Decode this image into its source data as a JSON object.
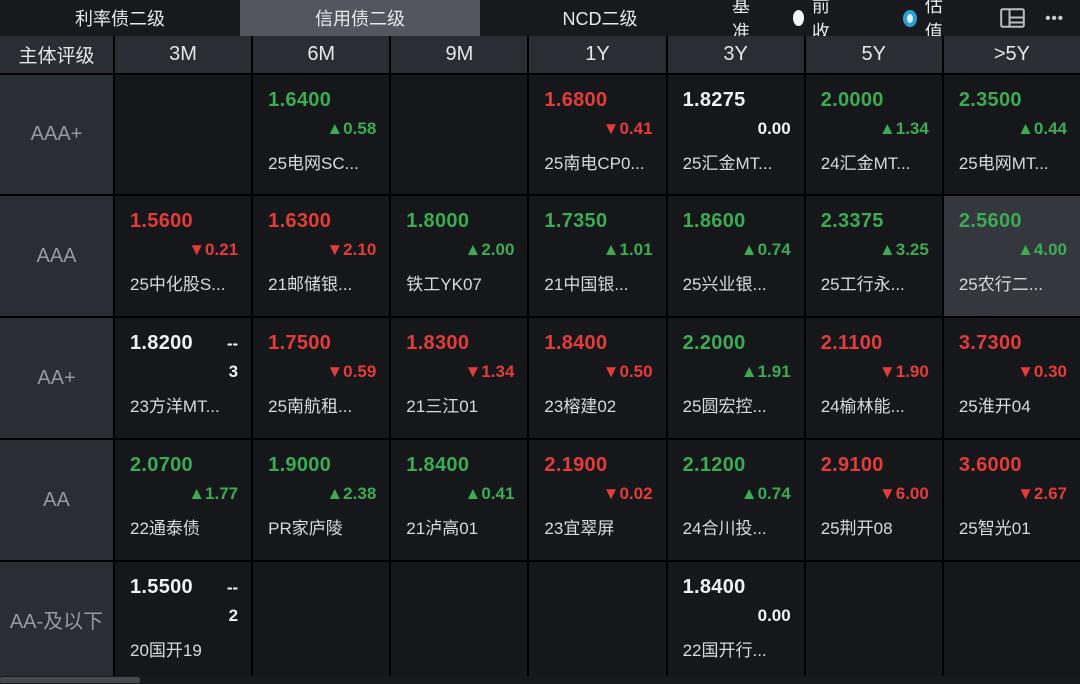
{
  "colors": {
    "green": "#3cab52",
    "red": "#e43c38",
    "accent_blue": "#2b9fd6",
    "panel": "#2a2d33",
    "cell_bg": "#15171b",
    "highlight_bg": "#34373e"
  },
  "glyphs": {
    "up": "▲",
    "down": "▼",
    "dash": "--",
    "more": "•••"
  },
  "tabs": [
    {
      "label": "利率债二级",
      "active": false
    },
    {
      "label": "信用债二级",
      "active": true
    },
    {
      "label": "NCD二级",
      "active": false
    }
  ],
  "toolbar": {
    "benchmark_label": "基准",
    "radios": [
      {
        "label": "前收",
        "selected": false
      },
      {
        "label": "估值",
        "selected": true
      }
    ]
  },
  "table": {
    "corner_header": "主体评级",
    "columns": [
      "3M",
      "6M",
      "9M",
      "1Y",
      "3Y",
      "5Y",
      ">5Y"
    ],
    "rows": [
      {
        "rating": "AAA+",
        "cells": [
          null,
          {
            "value": "1.6400",
            "value_color": "green",
            "direction": "up",
            "change": "0.58",
            "name": "25电网SC..."
          },
          null,
          {
            "value": "1.6800",
            "value_color": "red",
            "direction": "down",
            "change": "0.41",
            "name": "25南电CP0..."
          },
          {
            "value": "1.8275",
            "value_color": "white",
            "direction": "flat",
            "change": "0.00",
            "name": "25汇金MT..."
          },
          {
            "value": "2.0000",
            "value_color": "green",
            "direction": "up",
            "change": "1.34",
            "name": "24汇金MT..."
          },
          {
            "value": "2.3500",
            "value_color": "green",
            "direction": "up",
            "change": "0.44",
            "name": "25电网MT..."
          }
        ]
      },
      {
        "rating": "AAA",
        "cells": [
          {
            "value": "1.5600",
            "value_color": "red",
            "direction": "down",
            "change": "0.21",
            "name": "25中化股S..."
          },
          {
            "value": "1.6300",
            "value_color": "red",
            "direction": "down",
            "change": "2.10",
            "name": "21邮储银..."
          },
          {
            "value": "1.8000",
            "value_color": "green",
            "direction": "up",
            "change": "2.00",
            "name": "铁工YK07"
          },
          {
            "value": "1.7350",
            "value_color": "green",
            "direction": "up",
            "change": "1.01",
            "name": "21中国银..."
          },
          {
            "value": "1.8600",
            "value_color": "green",
            "direction": "up",
            "change": "0.74",
            "name": "25兴业银..."
          },
          {
            "value": "2.3375",
            "value_color": "green",
            "direction": "up",
            "change": "3.25",
            "name": "25工行永..."
          },
          {
            "value": "2.5600",
            "value_color": "green",
            "direction": "up",
            "change": "4.00",
            "name": "25农行二...",
            "highlight": true
          }
        ]
      },
      {
        "rating": "AA+",
        "cells": [
          {
            "value": "1.8200",
            "value_color": "white",
            "dash": true,
            "count": "3",
            "name": "23方洋MT..."
          },
          {
            "value": "1.7500",
            "value_color": "red",
            "direction": "down",
            "change": "0.59",
            "name": "25南航租..."
          },
          {
            "value": "1.8300",
            "value_color": "red",
            "direction": "down",
            "change": "1.34",
            "name": "21三江01"
          },
          {
            "value": "1.8400",
            "value_color": "red",
            "direction": "down",
            "change": "0.50",
            "name": "23榕建02"
          },
          {
            "value": "2.2000",
            "value_color": "green",
            "direction": "up",
            "change": "1.91",
            "name": "25圆宏控..."
          },
          {
            "value": "2.1100",
            "value_color": "red",
            "direction": "down",
            "change": "1.90",
            "name": "24榆林能..."
          },
          {
            "value": "3.7300",
            "value_color": "red",
            "direction": "down",
            "change": "0.30",
            "name": "25淮开04"
          }
        ]
      },
      {
        "rating": "AA",
        "cells": [
          {
            "value": "2.0700",
            "value_color": "green",
            "direction": "up",
            "change": "1.77",
            "name": "22通泰债"
          },
          {
            "value": "1.9000",
            "value_color": "green",
            "direction": "up",
            "change": "2.38",
            "name": "PR家庐陵"
          },
          {
            "value": "1.8400",
            "value_color": "green",
            "direction": "up",
            "change": "0.41",
            "name": "21泸高01"
          },
          {
            "value": "2.1900",
            "value_color": "red",
            "direction": "down",
            "change": "0.02",
            "name": "23宜翠屏"
          },
          {
            "value": "2.1200",
            "value_color": "green",
            "direction": "up",
            "change": "0.74",
            "name": "24合川投..."
          },
          {
            "value": "2.9100",
            "value_color": "red",
            "direction": "down",
            "change": "6.00",
            "name": "25荆开08"
          },
          {
            "value": "3.6000",
            "value_color": "red",
            "direction": "down",
            "change": "2.67",
            "name": "25智光01"
          }
        ]
      },
      {
        "rating": "AA-及以下",
        "cells": [
          {
            "value": "1.5500",
            "value_color": "white",
            "dash": true,
            "count": "2",
            "name": "20国开19"
          },
          null,
          null,
          null,
          {
            "value": "1.8400",
            "value_color": "white",
            "direction": "flat",
            "change": "0.00",
            "name": "22国开行..."
          },
          null,
          null
        ]
      }
    ]
  }
}
